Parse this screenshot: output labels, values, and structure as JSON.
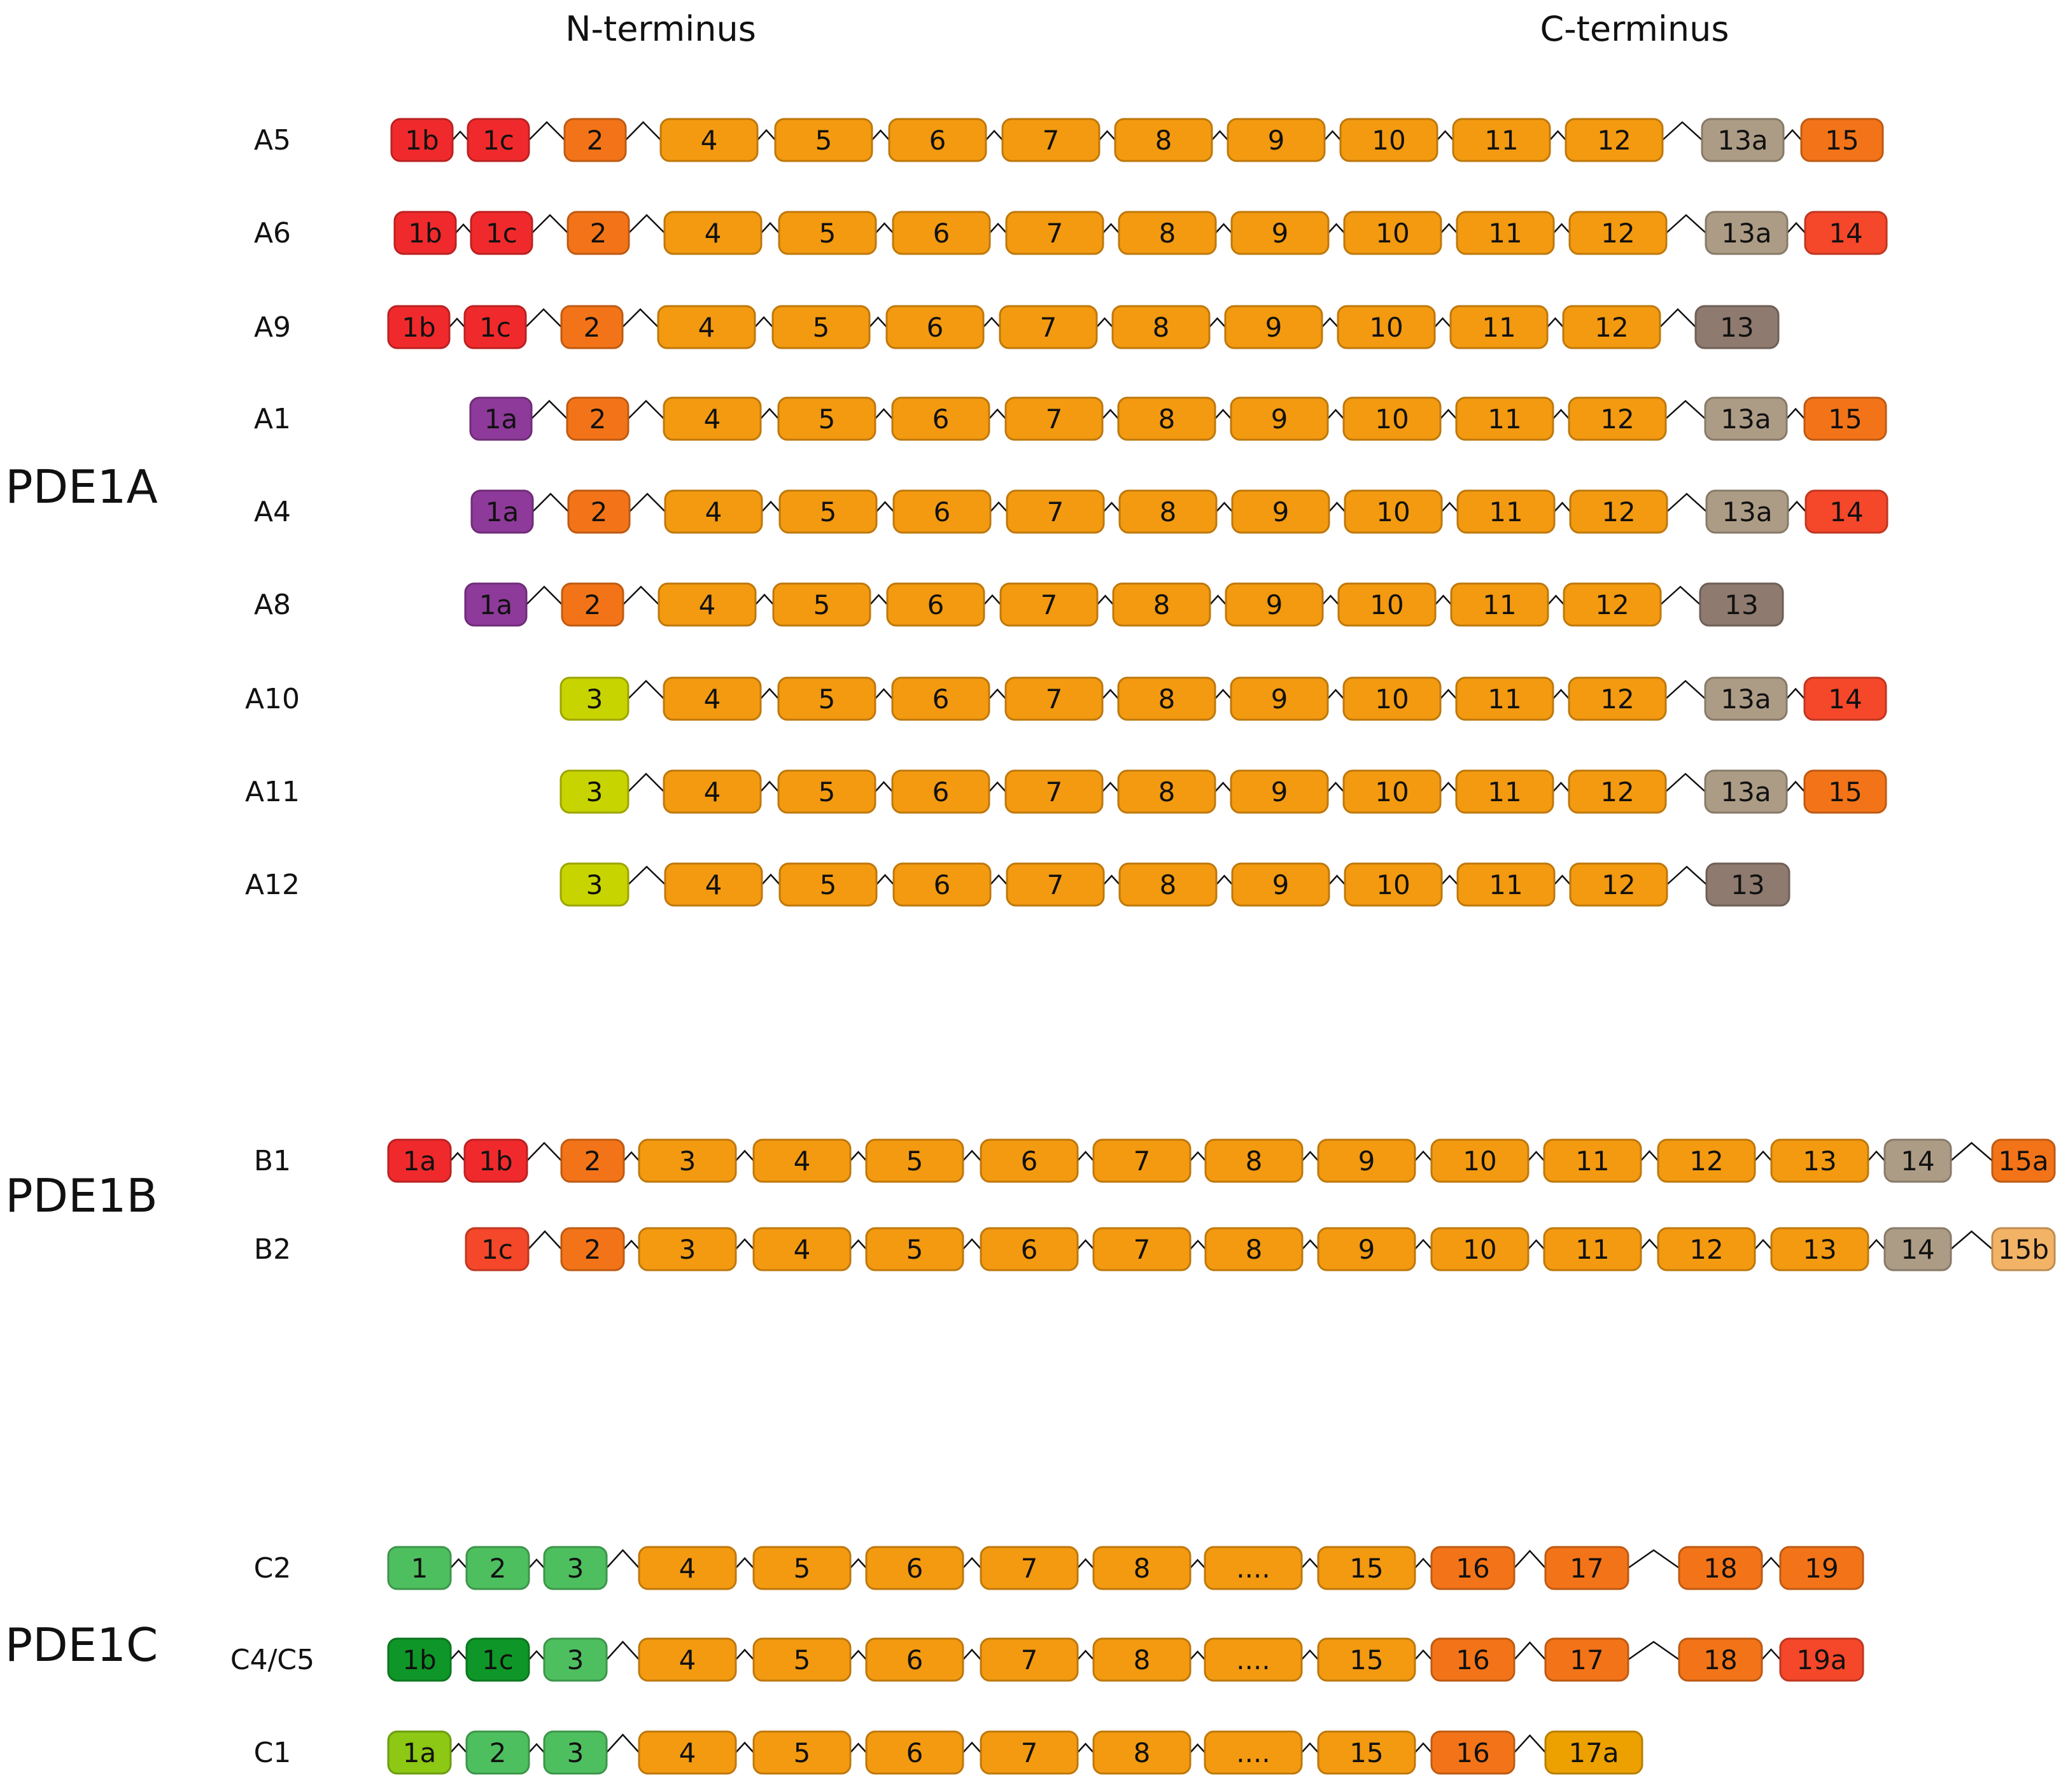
{
  "headers": {
    "n_terminus": "N-terminus",
    "c_terminus": "C-terminus"
  },
  "colors": {
    "red": "#f02a2c",
    "redorange": "#f5472a",
    "darkorange": "#f37418",
    "orange": "#f39a10",
    "purple": "#8e3a9a",
    "yellowgreen": "#c8d400",
    "tan": "#ad9c85",
    "brown": "#8e7a6e",
    "lightorange": "#f2b366",
    "green": "#4ebf5f",
    "darkgreen": "#0e9728",
    "limegreen": "#8cc814",
    "amber": "#eca100"
  },
  "groups": [
    {
      "name": "PDE1A",
      "rows": [
        {
          "label": "A5",
          "exons": [
            {
              "t": "1b",
              "c": "red"
            },
            {
              "t": "1c",
              "c": "red"
            },
            {
              "t": "2",
              "c": "darkorange"
            },
            {
              "t": "4",
              "c": "orange"
            },
            {
              "t": "5",
              "c": "orange"
            },
            {
              "t": "6",
              "c": "orange"
            },
            {
              "t": "7",
              "c": "orange"
            },
            {
              "t": "8",
              "c": "orange"
            },
            {
              "t": "9",
              "c": "orange"
            },
            {
              "t": "10",
              "c": "orange"
            },
            {
              "t": "11",
              "c": "orange"
            },
            {
              "t": "12",
              "c": "orange"
            },
            {
              "t": "13a",
              "c": "tan"
            },
            {
              "t": "15",
              "c": "darkorange"
            }
          ]
        },
        {
          "label": "A6",
          "exons": [
            {
              "t": "1b",
              "c": "red"
            },
            {
              "t": "1c",
              "c": "red"
            },
            {
              "t": "2",
              "c": "darkorange"
            },
            {
              "t": "4",
              "c": "orange"
            },
            {
              "t": "5",
              "c": "orange"
            },
            {
              "t": "6",
              "c": "orange"
            },
            {
              "t": "7",
              "c": "orange"
            },
            {
              "t": "8",
              "c": "orange"
            },
            {
              "t": "9",
              "c": "orange"
            },
            {
              "t": "10",
              "c": "orange"
            },
            {
              "t": "11",
              "c": "orange"
            },
            {
              "t": "12",
              "c": "orange"
            },
            {
              "t": "13a",
              "c": "tan"
            },
            {
              "t": "14",
              "c": "redorange"
            }
          ]
        },
        {
          "label": "A9",
          "exons": [
            {
              "t": "1b",
              "c": "red"
            },
            {
              "t": "1c",
              "c": "red"
            },
            {
              "t": "2",
              "c": "darkorange"
            },
            {
              "t": "4",
              "c": "orange"
            },
            {
              "t": "5",
              "c": "orange"
            },
            {
              "t": "6",
              "c": "orange"
            },
            {
              "t": "7",
              "c": "orange"
            },
            {
              "t": "8",
              "c": "orange"
            },
            {
              "t": "9",
              "c": "orange"
            },
            {
              "t": "10",
              "c": "orange"
            },
            {
              "t": "11",
              "c": "orange"
            },
            {
              "t": "12",
              "c": "orange"
            },
            {
              "t": "13",
              "c": "brown"
            }
          ]
        },
        {
          "label": "A1",
          "exons": [
            {
              "t": "1a",
              "c": "purple"
            },
            {
              "t": "2",
              "c": "darkorange"
            },
            {
              "t": "4",
              "c": "orange"
            },
            {
              "t": "5",
              "c": "orange"
            },
            {
              "t": "6",
              "c": "orange"
            },
            {
              "t": "7",
              "c": "orange"
            },
            {
              "t": "8",
              "c": "orange"
            },
            {
              "t": "9",
              "c": "orange"
            },
            {
              "t": "10",
              "c": "orange"
            },
            {
              "t": "11",
              "c": "orange"
            },
            {
              "t": "12",
              "c": "orange"
            },
            {
              "t": "13a",
              "c": "tan"
            },
            {
              "t": "15",
              "c": "darkorange"
            }
          ]
        },
        {
          "label": "A4",
          "exons": [
            {
              "t": "1a",
              "c": "purple"
            },
            {
              "t": "2",
              "c": "darkorange"
            },
            {
              "t": "4",
              "c": "orange"
            },
            {
              "t": "5",
              "c": "orange"
            },
            {
              "t": "6",
              "c": "orange"
            },
            {
              "t": "7",
              "c": "orange"
            },
            {
              "t": "8",
              "c": "orange"
            },
            {
              "t": "9",
              "c": "orange"
            },
            {
              "t": "10",
              "c": "orange"
            },
            {
              "t": "11",
              "c": "orange"
            },
            {
              "t": "12",
              "c": "orange"
            },
            {
              "t": "13a",
              "c": "tan"
            },
            {
              "t": "14",
              "c": "redorange"
            }
          ]
        },
        {
          "label": "A8",
          "exons": [
            {
              "t": "1a",
              "c": "purple"
            },
            {
              "t": "2",
              "c": "darkorange"
            },
            {
              "t": "4",
              "c": "orange"
            },
            {
              "t": "5",
              "c": "orange"
            },
            {
              "t": "6",
              "c": "orange"
            },
            {
              "t": "7",
              "c": "orange"
            },
            {
              "t": "8",
              "c": "orange"
            },
            {
              "t": "9",
              "c": "orange"
            },
            {
              "t": "10",
              "c": "orange"
            },
            {
              "t": "11",
              "c": "orange"
            },
            {
              "t": "12",
              "c": "orange"
            },
            {
              "t": "13",
              "c": "brown"
            }
          ]
        },
        {
          "label": "A10",
          "exons": [
            {
              "t": "3",
              "c": "yellowgreen"
            },
            {
              "t": "4",
              "c": "orange"
            },
            {
              "t": "5",
              "c": "orange"
            },
            {
              "t": "6",
              "c": "orange"
            },
            {
              "t": "7",
              "c": "orange"
            },
            {
              "t": "8",
              "c": "orange"
            },
            {
              "t": "9",
              "c": "orange"
            },
            {
              "t": "10",
              "c": "orange"
            },
            {
              "t": "11",
              "c": "orange"
            },
            {
              "t": "12",
              "c": "orange"
            },
            {
              "t": "13a",
              "c": "tan"
            },
            {
              "t": "14",
              "c": "redorange"
            }
          ]
        },
        {
          "label": "A11",
          "exons": [
            {
              "t": "3",
              "c": "yellowgreen"
            },
            {
              "t": "4",
              "c": "orange"
            },
            {
              "t": "5",
              "c": "orange"
            },
            {
              "t": "6",
              "c": "orange"
            },
            {
              "t": "7",
              "c": "orange"
            },
            {
              "t": "8",
              "c": "orange"
            },
            {
              "t": "9",
              "c": "orange"
            },
            {
              "t": "10",
              "c": "orange"
            },
            {
              "t": "11",
              "c": "orange"
            },
            {
              "t": "12",
              "c": "orange"
            },
            {
              "t": "13a",
              "c": "tan"
            },
            {
              "t": "15",
              "c": "darkorange"
            }
          ]
        },
        {
          "label": "A12",
          "exons": [
            {
              "t": "3",
              "c": "yellowgreen"
            },
            {
              "t": "4",
              "c": "orange"
            },
            {
              "t": "5",
              "c": "orange"
            },
            {
              "t": "6",
              "c": "orange"
            },
            {
              "t": "7",
              "c": "orange"
            },
            {
              "t": "8",
              "c": "orange"
            },
            {
              "t": "9",
              "c": "orange"
            },
            {
              "t": "10",
              "c": "orange"
            },
            {
              "t": "11",
              "c": "orange"
            },
            {
              "t": "12",
              "c": "orange"
            },
            {
              "t": "13",
              "c": "brown"
            }
          ]
        }
      ]
    },
    {
      "name": "PDE1B",
      "rows": [
        {
          "label": "B1",
          "exons": [
            {
              "t": "1a",
              "c": "red"
            },
            {
              "t": "1b",
              "c": "red"
            },
            {
              "t": "2",
              "c": "darkorange"
            },
            {
              "t": "3",
              "c": "orange"
            },
            {
              "t": "4",
              "c": "orange"
            },
            {
              "t": "5",
              "c": "orange"
            },
            {
              "t": "6",
              "c": "orange"
            },
            {
              "t": "7",
              "c": "orange"
            },
            {
              "t": "8",
              "c": "orange"
            },
            {
              "t": "9",
              "c": "orange"
            },
            {
              "t": "10",
              "c": "orange"
            },
            {
              "t": "11",
              "c": "orange"
            },
            {
              "t": "12",
              "c": "orange"
            },
            {
              "t": "13",
              "c": "orange"
            },
            {
              "t": "14",
              "c": "tan"
            },
            {
              "t": "15a",
              "c": "darkorange"
            }
          ]
        },
        {
          "label": "B2",
          "exons": [
            {
              "t": "1c",
              "c": "redorange"
            },
            {
              "t": "2",
              "c": "darkorange"
            },
            {
              "t": "3",
              "c": "orange"
            },
            {
              "t": "4",
              "c": "orange"
            },
            {
              "t": "5",
              "c": "orange"
            },
            {
              "t": "6",
              "c": "orange"
            },
            {
              "t": "7",
              "c": "orange"
            },
            {
              "t": "8",
              "c": "orange"
            },
            {
              "t": "9",
              "c": "orange"
            },
            {
              "t": "10",
              "c": "orange"
            },
            {
              "t": "11",
              "c": "orange"
            },
            {
              "t": "12",
              "c": "orange"
            },
            {
              "t": "13",
              "c": "orange"
            },
            {
              "t": "14",
              "c": "tan"
            },
            {
              "t": "15b",
              "c": "lightorange"
            }
          ]
        }
      ]
    },
    {
      "name": "PDE1C",
      "rows": [
        {
          "label": "C2",
          "exons": [
            {
              "t": "1",
              "c": "green"
            },
            {
              "t": "2",
              "c": "green"
            },
            {
              "t": "3",
              "c": "green"
            },
            {
              "t": "4",
              "c": "orange"
            },
            {
              "t": "5",
              "c": "orange"
            },
            {
              "t": "6",
              "c": "orange"
            },
            {
              "t": "7",
              "c": "orange"
            },
            {
              "t": "8",
              "c": "orange"
            },
            {
              "t": "....",
              "c": "orange"
            },
            {
              "t": "15",
              "c": "orange"
            },
            {
              "t": "16",
              "c": "darkorange"
            },
            {
              "t": "17",
              "c": "darkorange"
            },
            {
              "t": "18",
              "c": "darkorange"
            },
            {
              "t": "19",
              "c": "darkorange"
            }
          ]
        },
        {
          "label": "C4/C5",
          "exons": [
            {
              "t": "1b",
              "c": "darkgreen"
            },
            {
              "t": "1c",
              "c": "darkgreen"
            },
            {
              "t": "3",
              "c": "green"
            },
            {
              "t": "4",
              "c": "orange"
            },
            {
              "t": "5",
              "c": "orange"
            },
            {
              "t": "6",
              "c": "orange"
            },
            {
              "t": "7",
              "c": "orange"
            },
            {
              "t": "8",
              "c": "orange"
            },
            {
              "t": "....",
              "c": "orange"
            },
            {
              "t": "15",
              "c": "orange"
            },
            {
              "t": "16",
              "c": "darkorange"
            },
            {
              "t": "17",
              "c": "darkorange"
            },
            {
              "t": "18",
              "c": "darkorange"
            },
            {
              "t": "19a",
              "c": "redorange"
            }
          ]
        },
        {
          "label": "C1",
          "exons": [
            {
              "t": "1a",
              "c": "limegreen"
            },
            {
              "t": "2",
              "c": "green"
            },
            {
              "t": "3",
              "c": "green"
            },
            {
              "t": "4",
              "c": "orange"
            },
            {
              "t": "5",
              "c": "orange"
            },
            {
              "t": "6",
              "c": "orange"
            },
            {
              "t": "7",
              "c": "orange"
            },
            {
              "t": "8",
              "c": "orange"
            },
            {
              "t": "....",
              "c": "orange"
            },
            {
              "t": "15",
              "c": "orange"
            },
            {
              "t": "16",
              "c": "darkorange"
            },
            {
              "t": "17a",
              "c": "amber"
            }
          ]
        }
      ]
    }
  ]
}
